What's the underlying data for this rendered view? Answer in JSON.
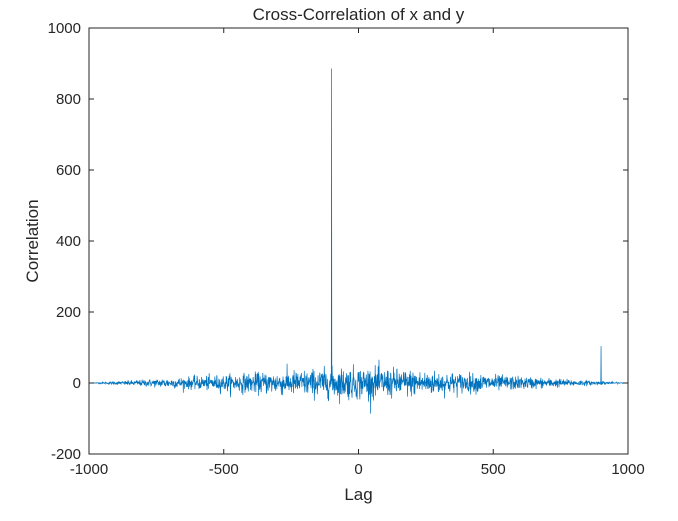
{
  "chart_data": {
    "type": "line",
    "title": "Cross-Correlation of x and y",
    "xlabel": "Lag",
    "ylabel": "Correlation",
    "xlim": [
      -1000,
      1000
    ],
    "ylim": [
      -200,
      1000
    ],
    "xticks": [
      -1000,
      -500,
      0,
      500,
      1000
    ],
    "yticks": [
      -200,
      0,
      200,
      400,
      600,
      800,
      1000
    ],
    "grid": false,
    "line_color": "#0072BD",
    "series": [
      {
        "x_range": [
          -1000,
          1000
        ],
        "baseline": 0,
        "noise_envelope_peak": 45,
        "peaks": [
          {
            "x": -100,
            "y": 886
          },
          {
            "x": 900,
            "y": 104
          }
        ]
      }
    ]
  }
}
